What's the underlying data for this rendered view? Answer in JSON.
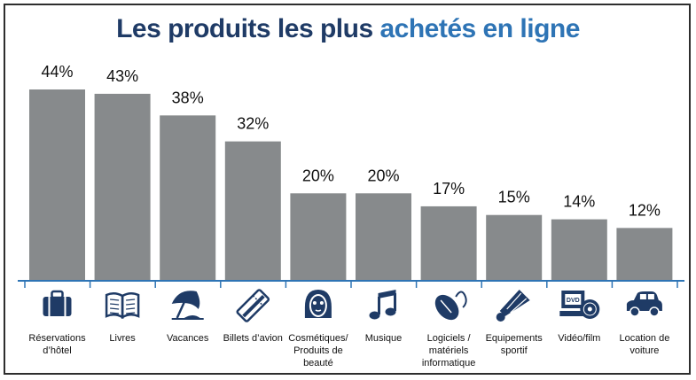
{
  "title": {
    "part1": "Les produits les plus ",
    "part2": "achetés en ligne"
  },
  "colors": {
    "bar": "#878a8c",
    "axis": "#2e74b5",
    "icon": "#1f3b66",
    "title_dark": "#1f3b66",
    "title_accent": "#2e74b5"
  },
  "chart_data": {
    "type": "bar",
    "title": "Les produits les plus achetés en ligne",
    "categories": [
      [
        "Réservations",
        "d’hôtel"
      ],
      [
        "Livres"
      ],
      [
        "Vacances"
      ],
      [
        "Billets d’avion"
      ],
      [
        "Cosmétiques/",
        "Produits de",
        "beauté"
      ],
      [
        "Musique"
      ],
      [
        "Logiciels /",
        "matériels",
        "informatique"
      ],
      [
        "Equipements",
        "sportif"
      ],
      [
        "Vidéo/film"
      ],
      [
        "Location de",
        "voiture"
      ]
    ],
    "values": [
      44,
      43,
      38,
      32,
      20,
      20,
      17,
      15,
      14,
      12
    ],
    "value_labels": [
      "44%",
      "43%",
      "38%",
      "32%",
      "20%",
      "20%",
      "17%",
      "15%",
      "14%",
      "12%"
    ],
    "icons": [
      "suitcase-icon",
      "book-icon",
      "beach-umbrella-icon",
      "plane-ticket-icon",
      "face-mask-icon",
      "music-note-icon",
      "computer-mouse-icon",
      "shuttlecock-icon",
      "dvd-player-icon",
      "car-icon"
    ],
    "ylim": [
      0,
      44
    ],
    "grid": false,
    "legend": "none"
  }
}
